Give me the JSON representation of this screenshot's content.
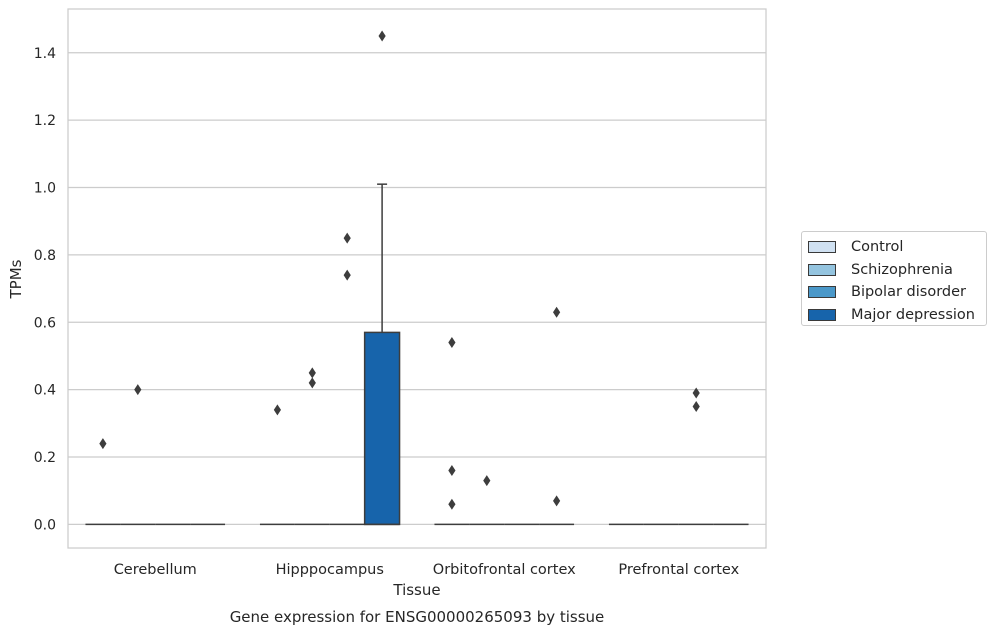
{
  "chart_data": {
    "type": "box",
    "title": "",
    "xlabel": "Tissue",
    "ylabel": "TPMs",
    "caption": "Gene expression for ENSG00000265093 by tissue",
    "ylim": [
      -0.07,
      1.53
    ],
    "yticks": [
      "0.0",
      "0.2",
      "0.4",
      "0.6",
      "0.8",
      "1.0",
      "1.2",
      "1.4"
    ],
    "grid": true,
    "legend_position": "right",
    "categories": [
      "Cerebellum",
      "Hipppocampus",
      "Orbitofrontal cortex",
      "Prefrontal cortex"
    ],
    "series": [
      {
        "name": "Control",
        "color": "#d0e1f2",
        "boxes": [
          {
            "category": "Cerebellum",
            "q1": 0,
            "median": 0,
            "q3": 0,
            "whisker_low": 0,
            "whisker_high": 0,
            "outliers": [
              0.24
            ]
          },
          {
            "category": "Hipppocampus",
            "q1": 0,
            "median": 0,
            "q3": 0,
            "whisker_low": 0,
            "whisker_high": 0,
            "outliers": [
              0.34
            ]
          },
          {
            "category": "Orbitofrontal cortex",
            "q1": 0,
            "median": 0,
            "q3": 0,
            "whisker_low": 0,
            "whisker_high": 0,
            "outliers": [
              0.06,
              0.16,
              0.54
            ]
          },
          {
            "category": "Prefrontal cortex",
            "q1": 0,
            "median": 0,
            "q3": 0,
            "whisker_low": 0,
            "whisker_high": 0,
            "outliers": []
          }
        ]
      },
      {
        "name": "Schizophrenia",
        "color": "#94c4df",
        "boxes": [
          {
            "category": "Cerebellum",
            "q1": 0,
            "median": 0,
            "q3": 0,
            "whisker_low": 0,
            "whisker_high": 0,
            "outliers": [
              0.4
            ]
          },
          {
            "category": "Hipppocampus",
            "q1": 0,
            "median": 0,
            "q3": 0,
            "whisker_low": 0,
            "whisker_high": 0,
            "outliers": [
              0.42,
              0.45
            ]
          },
          {
            "category": "Orbitofrontal cortex",
            "q1": 0,
            "median": 0,
            "q3": 0,
            "whisker_low": 0,
            "whisker_high": 0,
            "outliers": [
              0.13
            ]
          },
          {
            "category": "Prefrontal cortex",
            "q1": 0,
            "median": 0,
            "q3": 0,
            "whisker_low": 0,
            "whisker_high": 0,
            "outliers": []
          }
        ]
      },
      {
        "name": "Bipolar disorder",
        "color": "#4a98c9",
        "boxes": [
          {
            "category": "Cerebellum",
            "q1": 0,
            "median": 0,
            "q3": 0,
            "whisker_low": 0,
            "whisker_high": 0,
            "outliers": []
          },
          {
            "category": "Hipppocampus",
            "q1": 0,
            "median": 0,
            "q3": 0,
            "whisker_low": 0,
            "whisker_high": 0,
            "outliers": [
              0.74,
              0.85
            ]
          },
          {
            "category": "Orbitofrontal cortex",
            "q1": 0,
            "median": 0,
            "q3": 0,
            "whisker_low": 0,
            "whisker_high": 0,
            "outliers": []
          },
          {
            "category": "Prefrontal cortex",
            "q1": 0,
            "median": 0,
            "q3": 0,
            "whisker_low": 0,
            "whisker_high": 0,
            "outliers": [
              0.35,
              0.39
            ]
          }
        ]
      },
      {
        "name": "Major depression",
        "color": "#1764ab",
        "boxes": [
          {
            "category": "Cerebellum",
            "q1": 0,
            "median": 0,
            "q3": 0,
            "whisker_low": 0,
            "whisker_high": 0,
            "outliers": []
          },
          {
            "category": "Hipppocampus",
            "q1": 0,
            "median": 0,
            "q3": 0.57,
            "whisker_low": 0,
            "whisker_high": 1.01,
            "outliers": [
              1.45
            ]
          },
          {
            "category": "Orbitofrontal cortex",
            "q1": 0,
            "median": 0,
            "q3": 0,
            "whisker_low": 0,
            "whisker_high": 0,
            "outliers": [
              0.07,
              0.63
            ]
          },
          {
            "category": "Prefrontal cortex",
            "q1": 0,
            "median": 0,
            "q3": 0,
            "whisker_low": 0,
            "whisker_high": 0,
            "outliers": []
          }
        ]
      }
    ]
  }
}
